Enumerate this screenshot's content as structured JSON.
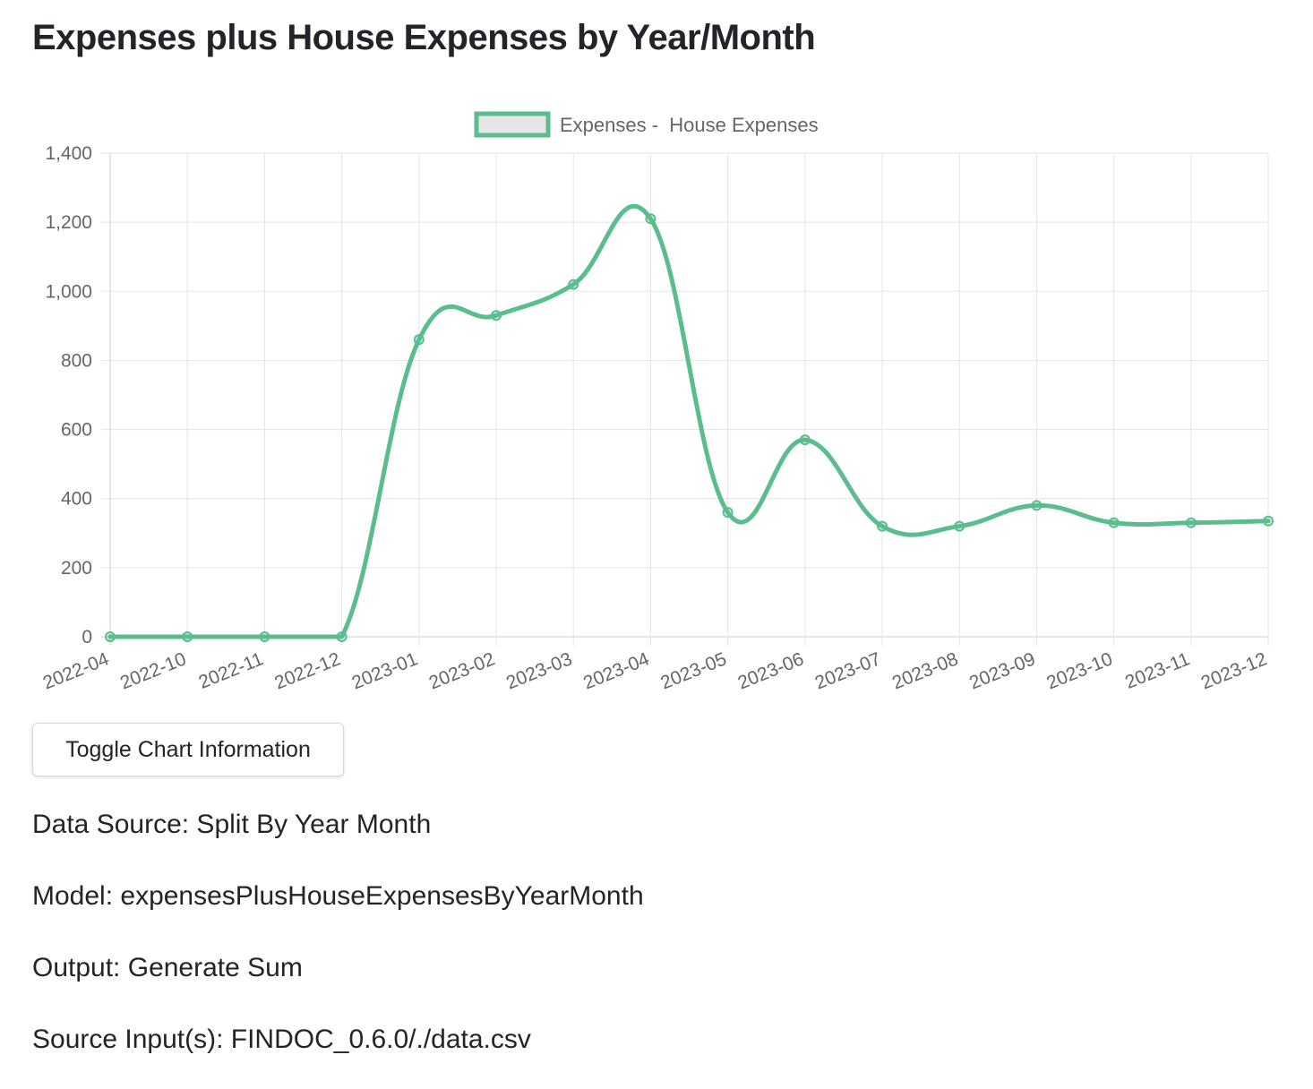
{
  "page": {
    "title": "Expenses plus House Expenses by Year/Month"
  },
  "controls": {
    "toggle_label": "Toggle Chart Information"
  },
  "info": {
    "data_source": "Data Source: Split By Year Month",
    "model": "Model: expensesPlusHouseExpensesByYearMonth",
    "output": "Output: Generate Sum",
    "source_inputs": "Source Input(s): FINDOC_0.6.0/./data.csv"
  },
  "colors": {
    "series_line": "#5bbd8e",
    "legend_fill": "#e6e6e6",
    "grid": "#e5e5e5",
    "tick_text": "#666666"
  },
  "chart_data": {
    "type": "line",
    "title": "",
    "xlabel": "",
    "ylabel": "",
    "ylim": [
      0,
      1400
    ],
    "y_ticks": [
      0,
      200,
      400,
      600,
      800,
      1000,
      1200,
      1400
    ],
    "y_tick_labels": [
      "0",
      "200",
      "400",
      "600",
      "800",
      "1,000",
      "1,200",
      "1,400"
    ],
    "categories": [
      "2022-04",
      "2022-10",
      "2022-11",
      "2022-12",
      "2023-01",
      "2023-02",
      "2023-03",
      "2023-04",
      "2023-05",
      "2023-06",
      "2023-07",
      "2023-08",
      "2023-09",
      "2023-10",
      "2023-11",
      "2023-12"
    ],
    "series": [
      {
        "name": "Expenses -  House Expenses",
        "values": [
          0,
          0,
          0,
          0,
          860,
          930,
          1020,
          1210,
          360,
          570,
          320,
          320,
          380,
          330,
          330,
          335
        ]
      }
    ],
    "grid": true,
    "legend": "top-center",
    "smooth": true
  }
}
